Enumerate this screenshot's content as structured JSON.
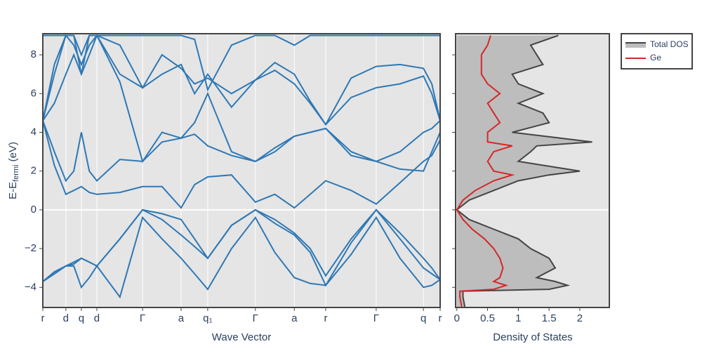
{
  "chart_data": [
    {
      "type": "line",
      "x_label": "Wave Vector",
      "y_label": {
        "text": "E-E",
        "sub": "fermi",
        "unit": " (eV)"
      },
      "x": [
        0,
        0.029,
        0.058,
        0.078,
        0.097,
        0.117,
        0.136,
        0.194,
        0.251,
        0.3,
        0.348,
        0.382,
        0.415,
        0.475,
        0.535,
        0.584,
        0.633,
        0.673,
        0.712,
        0.776,
        0.839,
        0.899,
        0.958,
        0.979,
        1.0
      ],
      "series": [
        {
          "color": "#2e78b5",
          "values": [
            -3.7,
            -3.3,
            -2.9,
            -2.9,
            -4.0,
            -3.5,
            -2.9,
            -4.5,
            -0.4,
            -1.5,
            -2.5,
            -3.3,
            -4.1,
            -2.0,
            -0.4,
            -2.2,
            -3.5,
            -3.8,
            -3.9,
            -2.3,
            -0.4,
            -2.5,
            -4.0,
            -3.9,
            -3.6
          ]
        },
        {
          "color": "#2e78b5",
          "values": [
            -3.7,
            -3.2,
            -2.9,
            -2.7,
            -2.5,
            -2.7,
            -2.9,
            -1.5,
            0,
            -0.5,
            -1.3,
            -1.9,
            -2.5,
            -0.8,
            0,
            -0.7,
            -1.3,
            -2.2,
            -3.9,
            -1.7,
            0,
            -1.5,
            -3.0,
            -3.3,
            -3.6
          ]
        },
        {
          "color": "#2e78b5",
          "values": [
            -3.7,
            -3.3,
            -2.9,
            -2.8,
            -2.5,
            -2.7,
            -2.9,
            -1.5,
            0,
            -0.2,
            -0.5,
            -1.5,
            -2.5,
            -0.8,
            0,
            -0.5,
            -1.2,
            -2.0,
            -3.4,
            -1.5,
            0,
            -1.2,
            -2.5,
            -3.0,
            -3.6
          ]
        },
        {
          "color": "#2e78b5",
          "values": [
            4.6,
            2.3,
            0.8,
            1.0,
            1.2,
            0.9,
            0.8,
            0.9,
            1.2,
            1.2,
            0.1,
            1.3,
            1.7,
            1.8,
            0.4,
            0.8,
            0.1,
            0.8,
            1.5,
            1.0,
            0.3,
            1.4,
            2.5,
            2.8,
            3.6
          ]
        },
        {
          "color": "#2e78b5",
          "values": [
            4.6,
            3.0,
            1.5,
            2.0,
            4.0,
            2.0,
            1.5,
            2.6,
            2.5,
            3.5,
            3.7,
            3.9,
            3.3,
            2.8,
            2.5,
            3.0,
            3.8,
            4.0,
            4.2,
            2.8,
            2.5,
            2.1,
            2.0,
            3.0,
            4.0
          ]
        },
        {
          "color": "#2e78b5",
          "values": [
            4.6,
            5.5,
            7.0,
            8.0,
            7.0,
            8.0,
            9.0,
            6.6,
            2.5,
            4.0,
            3.7,
            4.5,
            6.0,
            3.0,
            2.5,
            3.2,
            3.8,
            4.0,
            4.2,
            3.0,
            2.5,
            3.0,
            4.0,
            4.2,
            4.6
          ]
        },
        {
          "color": "#2e78b5",
          "values": [
            4.6,
            7.0,
            9.0,
            8.5,
            7.5,
            8.5,
            9.0,
            7.0,
            6.3,
            7.0,
            7.5,
            6.0,
            7.0,
            5.3,
            6.7,
            7.2,
            6.5,
            5.5,
            4.4,
            5.8,
            6.3,
            6.5,
            6.9,
            6.0,
            4.6
          ]
        },
        {
          "color": "#2e78b5",
          "values": [
            4.6,
            7.5,
            9.0,
            9.0,
            7.0,
            9.0,
            9.0,
            8.5,
            6.3,
            8.0,
            7.3,
            6.5,
            6.8,
            6.0,
            6.7,
            7.6,
            7.0,
            5.6,
            4.4,
            6.8,
            7.4,
            7.5,
            7.3,
            6.5,
            4.6
          ]
        },
        {
          "color": "#2e78b5",
          "values": [
            9.0,
            9.0,
            9.0,
            9.0,
            8.0,
            9.0,
            9.0,
            9.0,
            9.0,
            9.0,
            9.0,
            8.8,
            6.2,
            8.5,
            9.0,
            9.0,
            8.5,
            9.0,
            9.0,
            9.0,
            9.0,
            9.0,
            9.0,
            9.0,
            9.0
          ]
        }
      ],
      "xlim": [
        0,
        1
      ],
      "xticks": [
        {
          "value": 0,
          "label": "r"
        },
        {
          "value": 0.058,
          "label": "d"
        },
        {
          "value": 0.097,
          "label": "q"
        },
        {
          "value": 0.136,
          "label": "d"
        },
        {
          "value": 0.251,
          "label": "Γ"
        },
        {
          "value": 0.348,
          "label": "a"
        },
        {
          "value": 0.415,
          "label": "q₁"
        },
        {
          "value": 0.535,
          "label": "Γ"
        },
        {
          "value": 0.633,
          "label": "a"
        },
        {
          "value": 0.712,
          "label": "r"
        },
        {
          "value": 0.839,
          "label": "Γ"
        },
        {
          "value": 0.958,
          "label": "q"
        },
        {
          "value": 1.0,
          "label": "r"
        }
      ],
      "ylim": [
        -5.04,
        9.09
      ],
      "yticks": [
        {
          "value": -4,
          "label": "−4"
        },
        {
          "value": -2,
          "label": "−2"
        },
        0,
        2,
        4,
        6,
        8
      ],
      "grid": true
    },
    {
      "type": "area",
      "x_label": "Density of States",
      "y": [
        -5.0,
        -4.5,
        -4.2,
        -4.1,
        -3.9,
        -3.7,
        -3.5,
        -3.0,
        -2.5,
        -2.0,
        -1.5,
        -1.0,
        -0.5,
        0,
        0.5,
        1.0,
        1.5,
        1.8,
        2.0,
        2.5,
        3.0,
        3.3,
        3.5,
        4.0,
        4.5,
        5.0,
        5.5,
        6.0,
        6.5,
        7.0,
        7.5,
        8.0,
        8.5,
        9.0
      ],
      "series": [
        {
          "name": "Total DOS",
          "color": "#444444",
          "fill": "#bdbdbd",
          "values": [
            0.13,
            0.1,
            0.1,
            1.5,
            1.8,
            1.6,
            1.3,
            1.6,
            1.5,
            1.2,
            1.0,
            0.6,
            0.2,
            0,
            0.2,
            0.6,
            1.0,
            1.5,
            2.0,
            1.0,
            1.2,
            1.3,
            2.2,
            0.9,
            1.5,
            1.4,
            1.0,
            1.4,
            1.0,
            0.9,
            1.4,
            1.3,
            1.2,
            1.65
          ]
        },
        {
          "name": "Ge",
          "color": "#d62728",
          "values": [
            0.08,
            0.05,
            0.05,
            0.6,
            0.8,
            0.6,
            0.7,
            0.75,
            0.7,
            0.6,
            0.45,
            0.25,
            0.1,
            0,
            0.1,
            0.3,
            0.6,
            0.9,
            0.6,
            0.5,
            0.6,
            0.9,
            0.5,
            0.5,
            0.7,
            0.6,
            0.5,
            0.7,
            0.5,
            0.4,
            0.4,
            0.4,
            0.5,
            0.55
          ]
        }
      ],
      "xlim": [
        -0.02,
        2.48
      ],
      "xticks": [
        0,
        0.5,
        1,
        1.5,
        2
      ],
      "legend": "outside right"
    }
  ]
}
